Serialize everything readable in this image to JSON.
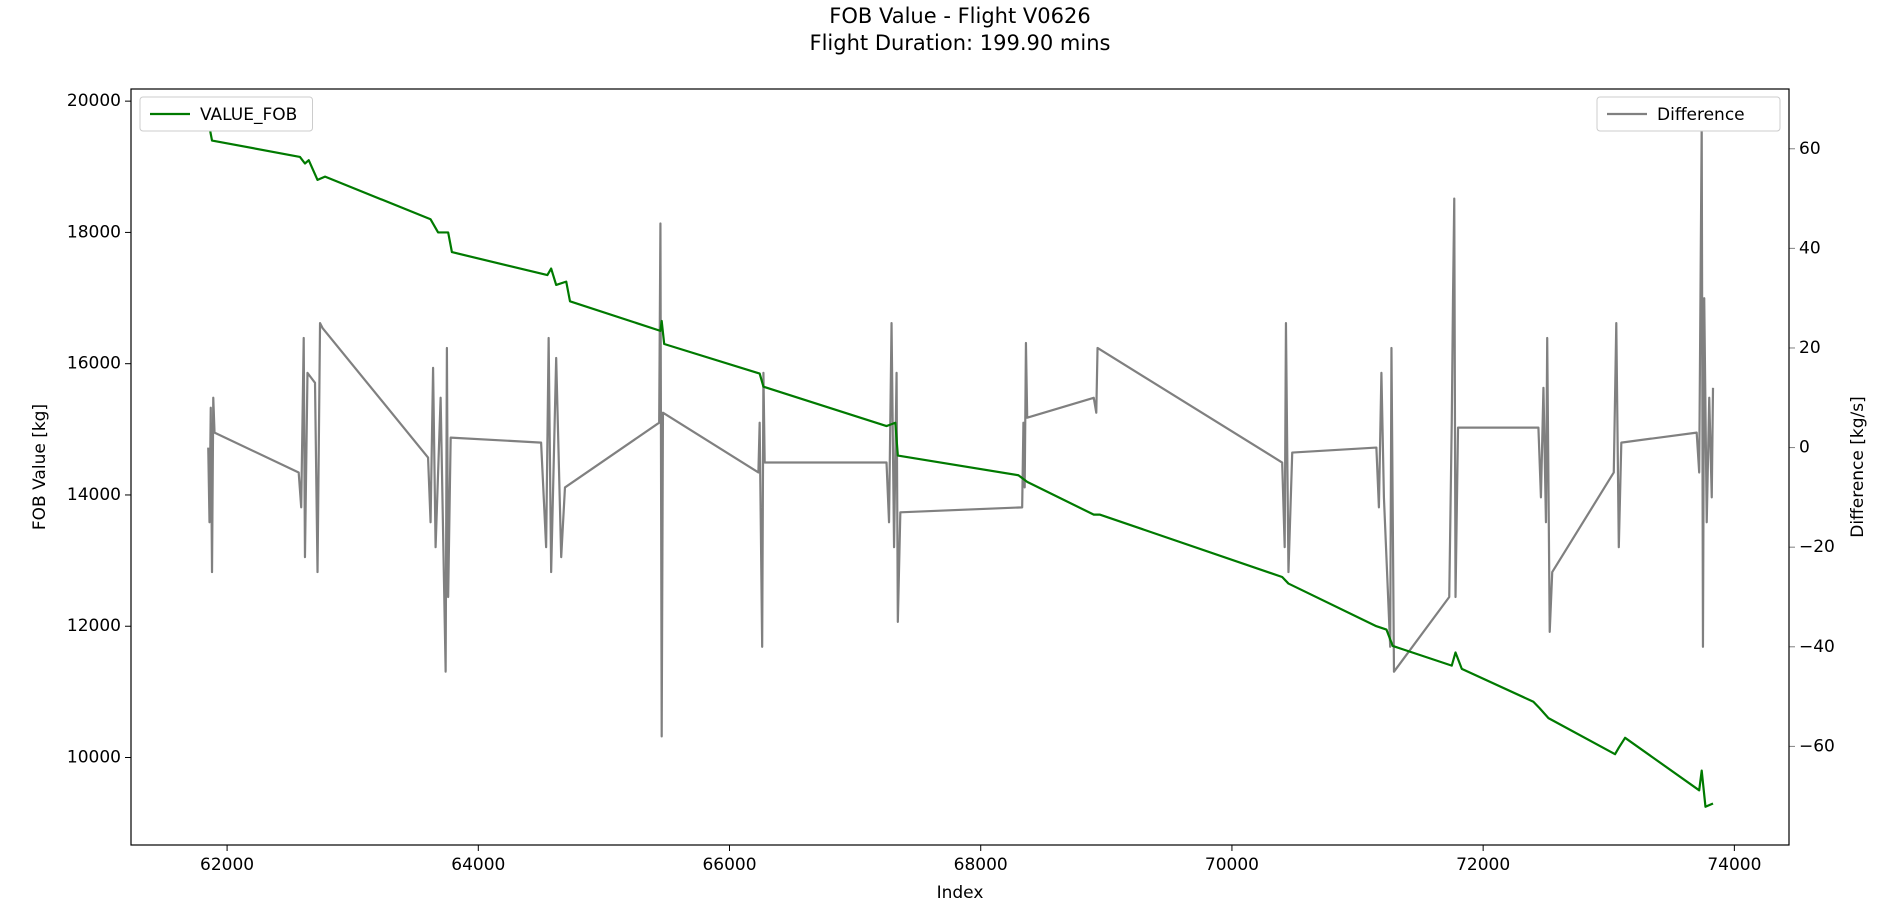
{
  "chart_data": {
    "type": "line",
    "title": "FOB Value - Flight V0626",
    "subtitle": "Flight Duration: 199.90 mins",
    "x_label": "Index",
    "y_label": "FOB Value [kg]",
    "y2_label": "Difference [kg/s]",
    "xlim": [
      61235,
      74435
    ],
    "xticks": [
      62000,
      64000,
      66000,
      68000,
      70000,
      72000,
      74000
    ],
    "ylim": [
      8667,
      20185
    ],
    "yticks": [
      10000,
      12000,
      14000,
      16000,
      18000,
      20000
    ],
    "y2lim": [
      -79.8,
      72
    ],
    "y2ticks": [
      {
        "value": -60,
        "label": "−60"
      },
      {
        "value": -40,
        "label": "−40"
      },
      {
        "value": -20,
        "label": "−20"
      },
      0,
      20,
      40,
      60
    ],
    "y2_color": "#808080",
    "series": [
      {
        "name": "VALUE_FOB",
        "color": "#007a00",
        "legend": "upper left",
        "x": [
          61850,
          61880,
          62580,
          62620,
          62650,
          62720,
          62780,
          63620,
          63680,
          63760,
          63790,
          64550,
          64580,
          64620,
          64700,
          64730,
          65450,
          65460,
          65480,
          66240,
          66270,
          67250,
          67320,
          67340,
          68300,
          68370,
          68900,
          68950,
          70400,
          70450,
          71150,
          71230,
          71280,
          71750,
          71780,
          71830,
          72400,
          72450,
          72520,
          73050,
          73080,
          73130,
          73720,
          73740,
          73770,
          73830
        ],
        "values": [
          19700,
          19400,
          19150,
          19050,
          19100,
          18800,
          18850,
          18200,
          18000,
          18000,
          17700,
          17350,
          17450,
          17200,
          17250,
          16950,
          16500,
          16650,
          16300,
          15850,
          15650,
          15050,
          15100,
          14600,
          14300,
          14200,
          13700,
          13700,
          12750,
          12650,
          12000,
          11950,
          11700,
          11400,
          11600,
          11350,
          10850,
          10750,
          10600,
          10050,
          10150,
          10300,
          9500,
          9800,
          9250,
          9300
        ]
      },
      {
        "name": "Difference",
        "color": "#808080",
        "axis": "y2",
        "legend": "upper right",
        "x": [
          61850,
          61860,
          61870,
          61880,
          61890,
          61900,
          62570,
          62590,
          62610,
          62620,
          62640,
          62700,
          62720,
          62740,
          62760,
          63600,
          63620,
          63640,
          63660,
          63700,
          63740,
          63750,
          63760,
          63780,
          64500,
          64540,
          64560,
          64580,
          64620,
          64660,
          64690,
          65440,
          65450,
          65460,
          65470,
          66230,
          66240,
          66260,
          66270,
          66280,
          67250,
          67270,
          67290,
          67310,
          67330,
          67340,
          67360,
          68330,
          68340,
          68350,
          68360,
          68370,
          68900,
          68920,
          68930,
          70400,
          70420,
          70430,
          70450,
          70480,
          71150,
          71170,
          71190,
          71210,
          71260,
          71270,
          71290,
          71730,
          71750,
          71760,
          71770,
          71780,
          71800,
          72440,
          72460,
          72480,
          72500,
          72510,
          72530,
          72550,
          73040,
          73060,
          73080,
          73100,
          73700,
          73720,
          73740,
          73750,
          73760,
          73780,
          73800,
          73820,
          73830
        ],
        "values": [
          0,
          -15,
          8,
          -25,
          10,
          3,
          -5,
          -12,
          22,
          -22,
          15,
          13,
          -25,
          25,
          24,
          -2,
          -15,
          16,
          -20,
          10,
          -45,
          20,
          -30,
          2,
          1,
          -20,
          22,
          -25,
          18,
          -22,
          -8,
          5,
          45,
          -58,
          7,
          -5,
          5,
          -40,
          15,
          -3,
          -3,
          -15,
          25,
          -20,
          15,
          -35,
          -13,
          -12,
          5,
          -8,
          21,
          6,
          10,
          7,
          20,
          -3,
          -20,
          25,
          -25,
          -1,
          0,
          -12,
          15,
          -10,
          -40,
          20,
          -45,
          -30,
          5,
          30,
          50,
          -30,
          4,
          4,
          -10,
          12,
          -15,
          22,
          -37,
          -25,
          -5,
          25,
          -20,
          1,
          3,
          -5,
          65,
          -40,
          30,
          -15,
          10,
          -10,
          12
        ]
      }
    ]
  }
}
